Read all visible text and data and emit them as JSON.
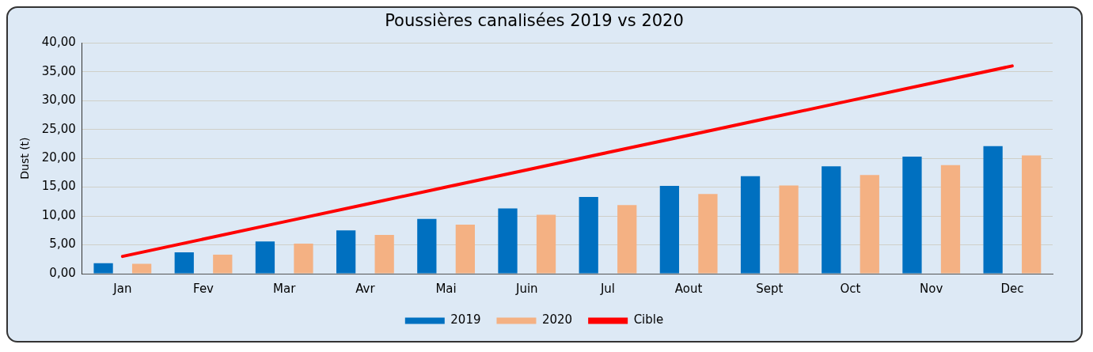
{
  "chart_data": {
    "type": "bar",
    "title": "Poussières canalisées 2019 vs 2020",
    "ylabel": "Dust (t)",
    "categories": [
      "Jan",
      "Fev",
      "Mar",
      "Avr",
      "Mai",
      "Juin",
      "Jul",
      "Aout",
      "Sept",
      "Oct",
      "Nov",
      "Dec"
    ],
    "series": [
      {
        "name": "2019",
        "color": "#0070c0",
        "values": [
          1.8,
          3.7,
          5.6,
          7.5,
          9.5,
          11.3,
          13.3,
          15.2,
          16.9,
          18.6,
          20.3,
          22.1
        ]
      },
      {
        "name": "2020",
        "color": "#f4b183",
        "values": [
          1.7,
          3.3,
          5.2,
          6.7,
          8.5,
          10.2,
          11.9,
          13.8,
          15.3,
          17.1,
          18.8,
          20.5
        ]
      },
      {
        "name": "Cible",
        "type": "line",
        "color": "#ff0000",
        "marker": "none",
        "values": [
          3,
          6,
          9,
          12,
          15,
          18,
          21,
          24,
          27,
          30,
          33,
          36
        ]
      }
    ],
    "ylim": [
      0,
      40
    ],
    "yticks": [
      {
        "value": 0,
        "label": "0,00"
      },
      {
        "value": 5,
        "label": "5,00"
      },
      {
        "value": 10,
        "label": "10,00"
      },
      {
        "value": 15,
        "label": "15,00"
      },
      {
        "value": 20,
        "label": "20,00"
      },
      {
        "value": 25,
        "label": "25,00"
      },
      {
        "value": 30,
        "label": "30,00"
      },
      {
        "value": 35,
        "label": "35,00"
      },
      {
        "value": 40,
        "label": "40,00"
      }
    ],
    "grid": "y",
    "legend": "bottom"
  }
}
